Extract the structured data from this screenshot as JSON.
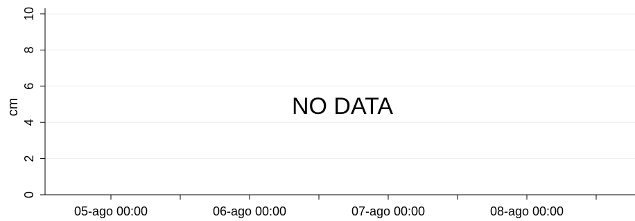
{
  "chart_data": {
    "type": "line",
    "title": "",
    "xlabel": "",
    "ylabel": "cm",
    "ylim": [
      0,
      10
    ],
    "yticks": [
      0,
      2,
      4,
      6,
      8,
      10
    ],
    "xticks": [
      "05-ago 00:00",
      "06-ago 00:00",
      "07-ago 00:00",
      "08-ago 00:00"
    ],
    "x": [],
    "series": [],
    "grid": true,
    "annotation": "NO DATA",
    "colors": {
      "axis": "#000000",
      "grid": "#ececec",
      "text": "#000000"
    }
  }
}
